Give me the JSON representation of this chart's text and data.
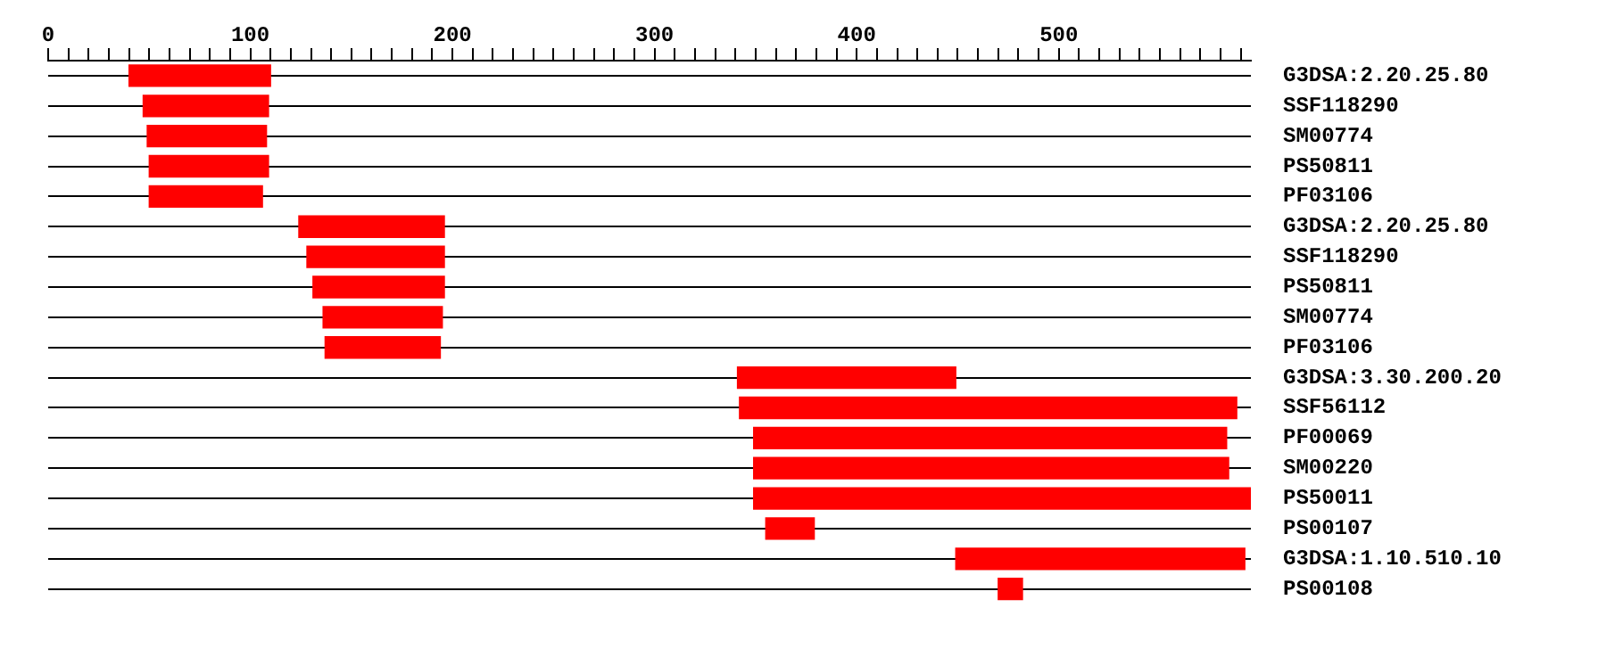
{
  "chart_data": {
    "type": "bar",
    "orientation": "horizontal",
    "categories": [
      "G3DSA:2.20.25.80",
      "SSF118290",
      "SM00774",
      "PS50811",
      "PF03106",
      "G3DSA:2.20.25.80",
      "SSF118290",
      "PS50811",
      "SM00774",
      "PF03106",
      "G3DSA:3.30.200.20",
      "SSF56112",
      "PF00069",
      "SM00220",
      "PS50011",
      "PS00107",
      "G3DSA:1.10.510.10",
      "PS00108"
    ],
    "base": [
      40,
      47,
      49,
      50,
      50,
      124,
      128,
      131,
      136,
      137,
      341,
      342,
      349,
      349,
      349,
      355,
      449,
      470
    ],
    "values": [
      70,
      62,
      59,
      59,
      56,
      72,
      68,
      65,
      59,
      57,
      108,
      246,
      234,
      235,
      246,
      24,
      143,
      12
    ],
    "color": "#ff0000",
    "xlim": [
      0,
      595
    ],
    "xticks": [
      0,
      {
        "value": 10,
        "label": null
      },
      {
        "value": 20,
        "label": null
      },
      {
        "value": 30,
        "label": null
      },
      {
        "value": 40,
        "label": null
      },
      {
        "value": 50,
        "label": null
      },
      {
        "value": 60,
        "label": null
      },
      {
        "value": 70,
        "label": null
      },
      {
        "value": 80,
        "label": null
      },
      {
        "value": 90,
        "label": null
      },
      100,
      {
        "value": 110,
        "label": null
      },
      {
        "value": 120,
        "label": null
      },
      {
        "value": 130,
        "label": null
      },
      {
        "value": 140,
        "label": null
      },
      {
        "value": 150,
        "label": null
      },
      {
        "value": 160,
        "label": null
      },
      {
        "value": 170,
        "label": null
      },
      {
        "value": 180,
        "label": null
      },
      {
        "value": 190,
        "label": null
      },
      200,
      {
        "value": 210,
        "label": null
      },
      {
        "value": 220,
        "label": null
      },
      {
        "value": 230,
        "label": null
      },
      {
        "value": 240,
        "label": null
      },
      {
        "value": 250,
        "label": null
      },
      {
        "value": 260,
        "label": null
      },
      {
        "value": 270,
        "label": null
      },
      {
        "value": 280,
        "label": null
      },
      {
        "value": 290,
        "label": null
      },
      300,
      {
        "value": 310,
        "label": null
      },
      {
        "value": 320,
        "label": null
      },
      {
        "value": 330,
        "label": null
      },
      {
        "value": 340,
        "label": null
      },
      {
        "value": 350,
        "label": null
      },
      {
        "value": 360,
        "label": null
      },
      {
        "value": 370,
        "label": null
      },
      {
        "value": 380,
        "label": null
      },
      {
        "value": 390,
        "label": null
      },
      400,
      {
        "value": 410,
        "label": null
      },
      {
        "value": 420,
        "label": null
      },
      {
        "value": 430,
        "label": null
      },
      {
        "value": 440,
        "label": null
      },
      {
        "value": 450,
        "label": null
      },
      {
        "value": 460,
        "label": null
      },
      {
        "value": 470,
        "label": null
      },
      {
        "value": 480,
        "label": null
      },
      {
        "value": 490,
        "label": null
      },
      500,
      {
        "value": 510,
        "label": null
      },
      {
        "value": 520,
        "label": null
      },
      {
        "value": 530,
        "label": null
      },
      {
        "value": 540,
        "label": null
      },
      {
        "value": 550,
        "label": null
      },
      {
        "value": 560,
        "label": null
      },
      {
        "value": 570,
        "label": null
      },
      {
        "value": 580,
        "label": null
      },
      {
        "value": 590,
        "label": null
      }
    ],
    "grid": "y"
  }
}
